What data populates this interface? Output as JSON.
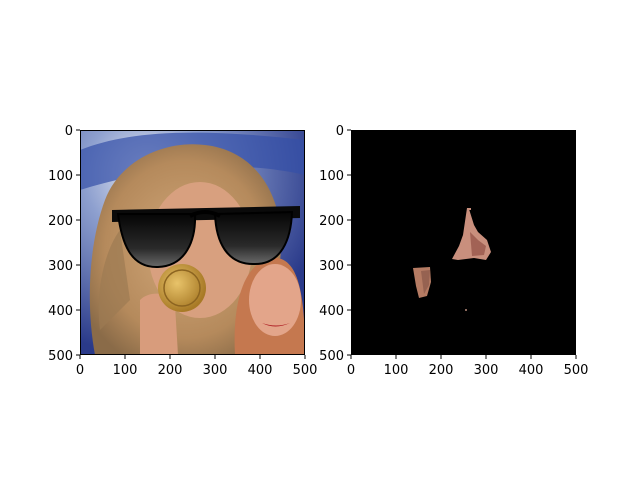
{
  "figure": {
    "panels": [
      {
        "name": "left-image",
        "description_kind": "photo",
        "image_background": "#2a3f8f",
        "xlim": [
          0,
          500
        ],
        "ylim": [
          500,
          0
        ],
        "xticks": [
          "0",
          "100",
          "200",
          "300",
          "400",
          "500"
        ],
        "yticks": [
          "0",
          "100",
          "200",
          "300",
          "400",
          "500"
        ]
      },
      {
        "name": "right-image",
        "description_kind": "mask",
        "image_background": "#000000",
        "xlim": [
          0,
          500
        ],
        "ylim": [
          500,
          0
        ],
        "xticks": [
          "0",
          "100",
          "200",
          "300",
          "400",
          "500"
        ],
        "yticks": [
          "0",
          "100",
          "200",
          "300",
          "400",
          "500"
        ]
      }
    ]
  },
  "chart_data": [
    {
      "type": "image",
      "xlim": [
        0,
        500
      ],
      "ylim": [
        500,
        0
      ],
      "xticks": [
        0,
        100,
        200,
        300,
        400,
        500
      ],
      "yticks": [
        0,
        100,
        200,
        300,
        400,
        500
      ],
      "grid": false
    },
    {
      "type": "image",
      "xlim": [
        0,
        500
      ],
      "ylim": [
        500,
        0
      ],
      "xticks": [
        0,
        100,
        200,
        300,
        400,
        500
      ],
      "yticks": [
        0,
        100,
        200,
        300,
        400,
        500
      ],
      "grid": false
    }
  ]
}
